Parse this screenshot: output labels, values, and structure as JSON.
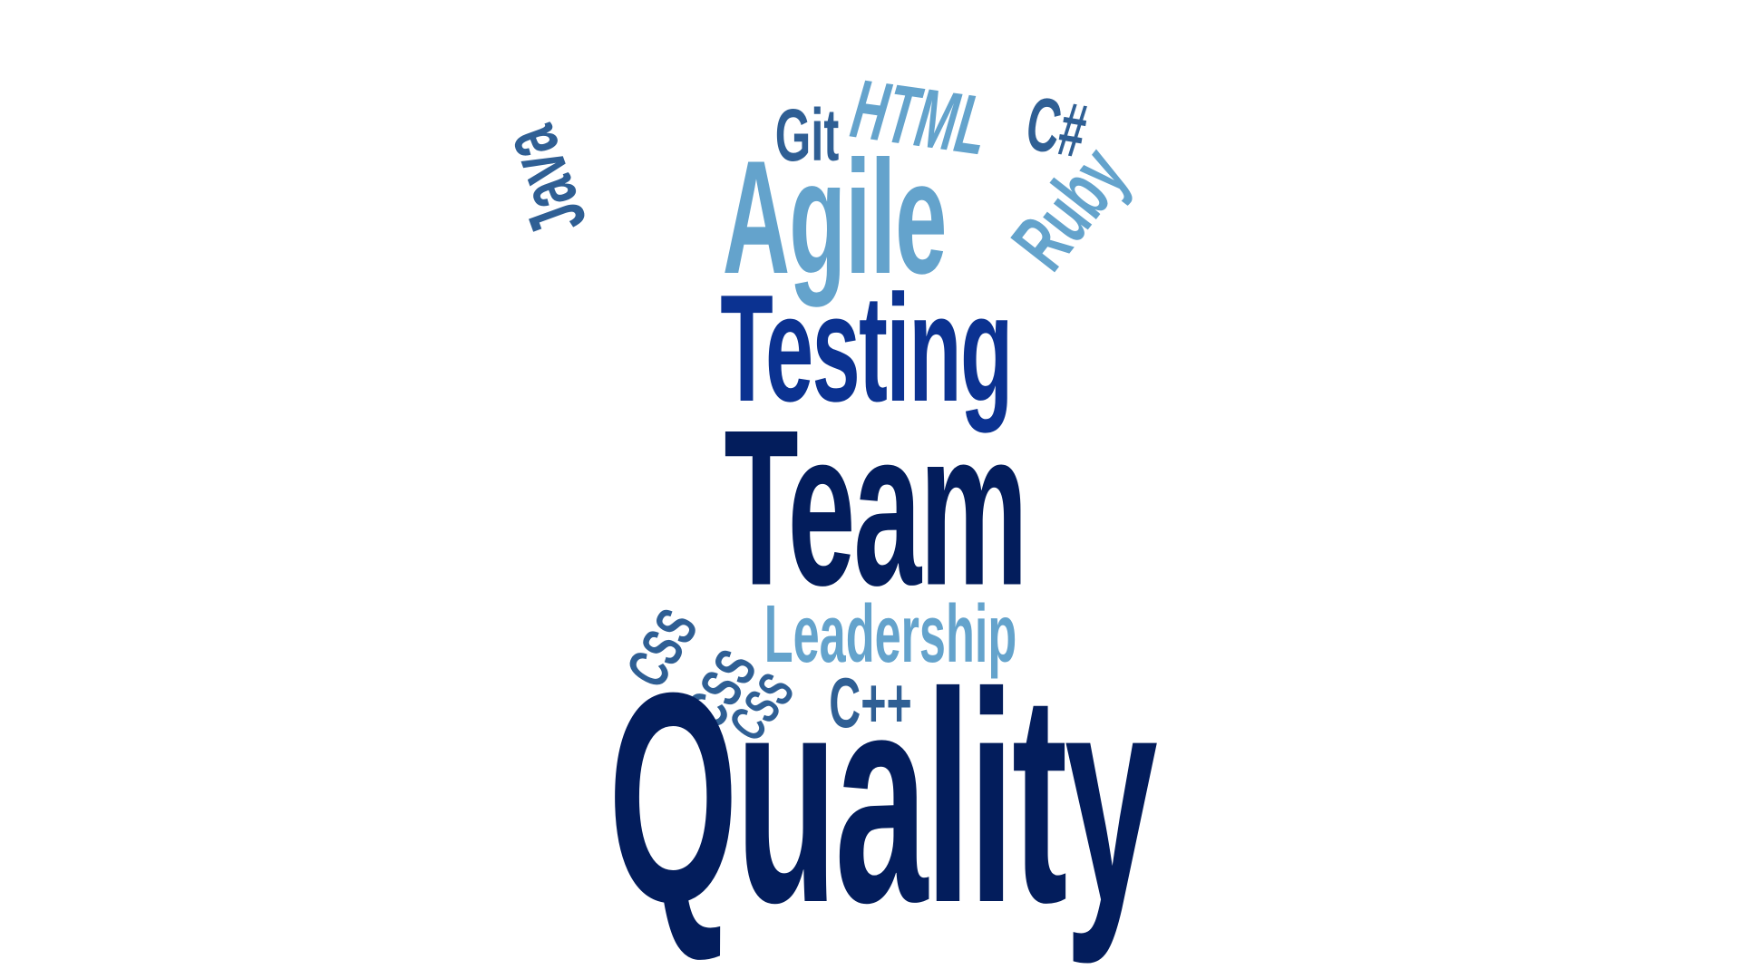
{
  "colors": {
    "navy": "#031d5c",
    "royal_blue": "#0b3291",
    "steel_blue": "#2f5f94",
    "sky_blue": "#64a3cc",
    "background": "#ffffff"
  },
  "words": {
    "quality": {
      "text": "Quality",
      "color": "#031d5c"
    },
    "team": {
      "text": "Team",
      "color": "#031d5c"
    },
    "testing": {
      "text": "Testing",
      "color": "#0b3291"
    },
    "agile": {
      "text": "Agile",
      "color": "#64a3cc"
    },
    "leadership": {
      "text": "Leadership",
      "color": "#64a3cc"
    },
    "git": {
      "text": "Git",
      "color": "#2f5f94"
    },
    "html": {
      "text": "HTML",
      "color": "#64a3cc"
    },
    "csharp": {
      "text": "C#",
      "color": "#2f5f94"
    },
    "java": {
      "text": "Java",
      "color": "#2f5f94"
    },
    "ruby": {
      "text": "Ruby",
      "color": "#64a3cc"
    },
    "css_1": {
      "text": "CSS",
      "color": "#2f5f94"
    },
    "css_2": {
      "text": "CSS",
      "color": "#2f5f94"
    },
    "css_3": {
      "text": "CSS",
      "color": "#2f5f94"
    },
    "cpp": {
      "text": "C++",
      "color": "#2f5f94"
    }
  }
}
